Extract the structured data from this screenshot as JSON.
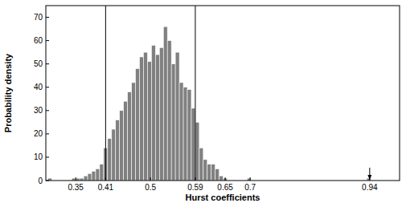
{
  "chart_data": {
    "type": "histogram",
    "xlabel": "Hurst coefficients",
    "ylabel": "Probability density",
    "color": "#808080",
    "bins": [
      0.294,
      0.302,
      0.31,
      0.318,
      0.326,
      0.334,
      0.342,
      0.35,
      0.358,
      0.366,
      0.374,
      0.382,
      0.39,
      0.398,
      0.406,
      0.414,
      0.422,
      0.43,
      0.438,
      0.446,
      0.454,
      0.462,
      0.47,
      0.478,
      0.486,
      0.494,
      0.502,
      0.51,
      0.518,
      0.526,
      0.534,
      0.542,
      0.55,
      0.558,
      0.566,
      0.574,
      0.582,
      0.59,
      0.598,
      0.606,
      0.614,
      0.622,
      0.63,
      0.638,
      0.646,
      0.654,
      0.662,
      0.67,
      0.678,
      0.686,
      0.694,
      0.702,
      0.71,
      0.718,
      0.726,
      0.734,
      0.742,
      0.75,
      0.758,
      0.766,
      0.774,
      0.782,
      0.79,
      0.798,
      0.806,
      0.814,
      0.822,
      0.83,
      0.838,
      0.846,
      0.854,
      0.862,
      0.87,
      0.878,
      0.886,
      0.894,
      0.902,
      0.91,
      0.918,
      0.926,
      0.934,
      0.942
    ],
    "values": [
      1,
      0,
      0,
      0,
      0,
      0,
      1,
      1,
      1,
      2,
      3,
      4,
      5,
      7,
      14,
      18,
      22,
      26,
      30,
      34,
      38,
      42,
      48,
      53,
      55,
      51,
      58,
      54,
      57,
      66,
      60,
      50,
      55,
      42,
      40,
      39,
      31,
      25,
      14,
      9,
      7,
      7,
      5,
      2,
      1,
      0,
      0,
      0,
      0,
      0,
      1,
      0,
      0,
      0,
      0,
      0,
      0,
      0,
      0,
      0,
      0,
      0,
      0,
      0,
      0,
      0,
      0,
      0,
      0,
      0,
      0,
      0,
      0,
      0,
      0,
      0,
      0,
      0,
      0,
      0,
      1
    ],
    "xlim": [
      0.29,
      1.0
    ],
    "ylim": [
      0,
      75
    ],
    "xticks": [
      0.35,
      0.41,
      0.5,
      0.59,
      0.65,
      0.7,
      0.94
    ],
    "yticks": [
      0,
      10,
      20,
      30,
      40,
      50,
      60,
      70
    ],
    "vlines": [
      0.41,
      0.59
    ],
    "arrow_x": 0.94
  }
}
